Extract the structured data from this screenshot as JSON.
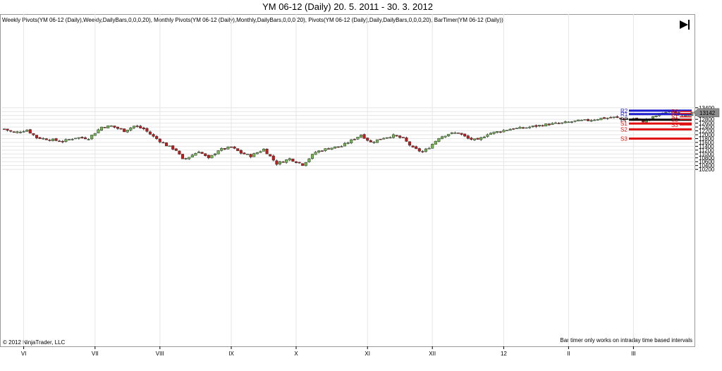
{
  "title": "YM 06-12 (Daily)  20. 5. 2011 - 30. 3. 2012",
  "indicators": "Weekly Pivots(YM 06-12 (Daily),Weekly,DailyBars,0,0,0,20), Monthly Pivots(YM 06-12 (Daily),Monthly,DailyBars,0,0,0,20), Pivots(YM 06-12 (Daily),Daily,DailyBars,0,0,0,20), BarTimer(YM 06-12 (Daily))",
  "copyright": "© 2012 NinjaTrader, LLC",
  "bar_timer_note": "Bar timer only works on intraday time based intervals",
  "last_price_label": "13142",
  "colors": {
    "up": "#6fb84a",
    "down": "#c81818",
    "wick": "#333333",
    "grid": "#e6e6e6",
    "pivot_blue": "#1c1ccc",
    "pivot_red": "#e01010",
    "pivot_black": "#000000"
  },
  "chart_data": {
    "type": "candlestick",
    "title": "YM 06-12 (Daily)  20. 5. 2011 - 30. 3. 2012",
    "y_ticks": [
      10200,
      10400,
      10600,
      10800,
      11000,
      11200,
      11400,
      11600,
      11800,
      12000,
      12200,
      12400,
      12600,
      12800,
      13000,
      13200,
      13400
    ],
    "ylim": [
      10100,
      13450
    ],
    "x_ticks": [
      "VI",
      "VII",
      "VIII",
      "IX",
      "X",
      "XI",
      "XII",
      "12",
      "II",
      "III"
    ],
    "x_tick_bar_index": [
      6,
      28,
      48,
      70,
      90,
      112,
      132,
      154,
      174,
      194
    ],
    "close_path": [
      [
        0,
        12300
      ],
      [
        3,
        12100
      ],
      [
        7,
        12250
      ],
      [
        10,
        11850
      ],
      [
        14,
        11750
      ],
      [
        18,
        11650
      ],
      [
        22,
        11850
      ],
      [
        26,
        11820
      ],
      [
        30,
        12400
      ],
      [
        33,
        12450
      ],
      [
        37,
        12200
      ],
      [
        40,
        12450
      ],
      [
        43,
        12300
      ],
      [
        46,
        11900
      ],
      [
        50,
        11450
      ],
      [
        53,
        11200
      ],
      [
        55,
        10700
      ],
      [
        57,
        10850
      ],
      [
        60,
        11150
      ],
      [
        63,
        10750
      ],
      [
        66,
        11200
      ],
      [
        70,
        11350
      ],
      [
        73,
        11050
      ],
      [
        76,
        10900
      ],
      [
        80,
        11250
      ],
      [
        84,
        10500
      ],
      [
        88,
        10750
      ],
      [
        92,
        10450
      ],
      [
        96,
        11100
      ],
      [
        100,
        11300
      ],
      [
        104,
        11400
      ],
      [
        107,
        11700
      ],
      [
        110,
        12000
      ],
      [
        113,
        11600
      ],
      [
        117,
        11850
      ],
      [
        120,
        11950
      ],
      [
        123,
        11800
      ],
      [
        126,
        11300
      ],
      [
        129,
        11100
      ],
      [
        131,
        11350
      ],
      [
        134,
        11850
      ],
      [
        137,
        12050
      ],
      [
        140,
        12100
      ],
      [
        143,
        11800
      ],
      [
        146,
        11700
      ],
      [
        149,
        12050
      ],
      [
        152,
        12150
      ],
      [
        156,
        12300
      ],
      [
        160,
        12350
      ],
      [
        164,
        12450
      ],
      [
        168,
        12550
      ],
      [
        172,
        12600
      ],
      [
        176,
        12700
      ],
      [
        180,
        12750
      ],
      [
        184,
        12850
      ],
      [
        188,
        12900
      ],
      [
        191,
        12800
      ],
      [
        194,
        12850
      ],
      [
        197,
        12700
      ],
      [
        200,
        12900
      ],
      [
        203,
        13150
      ],
      [
        206,
        13200
      ],
      [
        209,
        13050
      ],
      [
        212,
        13100
      ],
      [
        214,
        13142
      ]
    ],
    "pivot_levels": [
      {
        "label": "R2",
        "value": 13250,
        "color": "blue"
      },
      {
        "label": "R1",
        "value": 13070,
        "color": "blue"
      },
      {
        "label": "PP",
        "value": 12780,
        "color": "black"
      },
      {
        "label": "S1",
        "value": 12580,
        "color": "red"
      },
      {
        "label": "S2",
        "value": 12280,
        "color": "red"
      },
      {
        "label": "S3",
        "value": 11800,
        "color": "red"
      }
    ],
    "daily_pivots": [
      {
        "label": "R2",
        "value": 13210
      },
      {
        "label": "R1",
        "value": 13100
      },
      {
        "label": "S1",
        "value": 12930
      },
      {
        "label": "S2",
        "value": 12790
      },
      {
        "label": "S3",
        "value": 12510
      }
    ],
    "last_price": 13142
  }
}
